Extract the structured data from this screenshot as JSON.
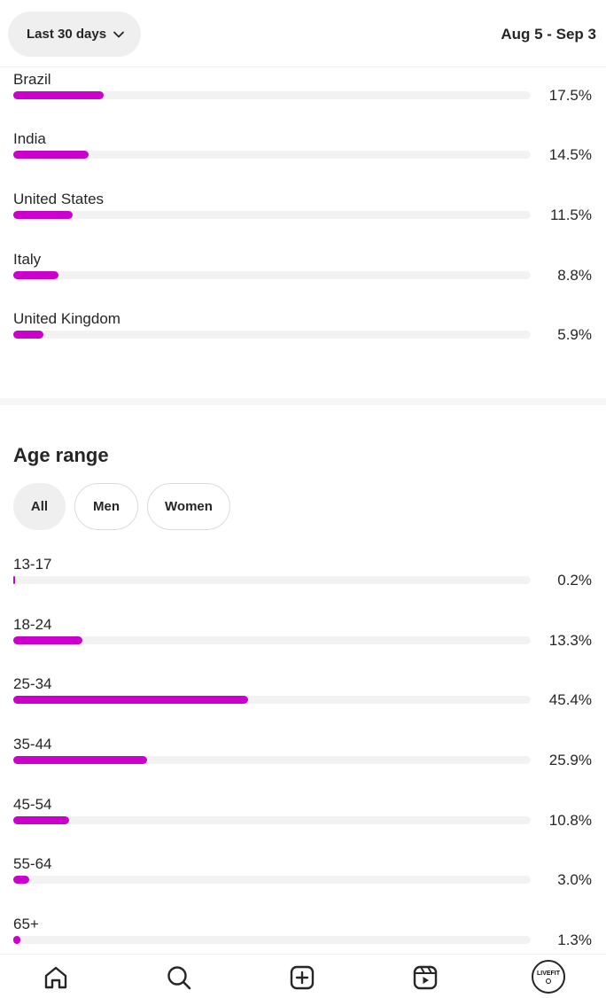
{
  "header": {
    "range_label": "Last 30 days",
    "date_range": "Aug 5 - Sep 3"
  },
  "countries": [
    {
      "label": "Brazil",
      "percent_text": "17.5%",
      "value": 17.5
    },
    {
      "label": "India",
      "percent_text": "14.5%",
      "value": 14.5
    },
    {
      "label": "United States",
      "percent_text": "11.5%",
      "value": 11.5
    },
    {
      "label": "Italy",
      "percent_text": "8.8%",
      "value": 8.8
    },
    {
      "label": "United Kingdom",
      "percent_text": "5.9%",
      "value": 5.9
    }
  ],
  "age_section": {
    "title": "Age range",
    "filters": [
      "All",
      "Men",
      "Women"
    ],
    "selected_filter": "All"
  },
  "ages": [
    {
      "label": "13-17",
      "percent_text": "0.2%",
      "value": 0.2
    },
    {
      "label": "18-24",
      "percent_text": "13.3%",
      "value": 13.3
    },
    {
      "label": "25-34",
      "percent_text": "45.4%",
      "value": 45.4
    },
    {
      "label": "35-44",
      "percent_text": "25.9%",
      "value": 25.9
    },
    {
      "label": "45-54",
      "percent_text": "10.8%",
      "value": 10.8
    },
    {
      "label": "55-64",
      "percent_text": "3.0%",
      "value": 3.0
    },
    {
      "label": "65+",
      "percent_text": "1.3%",
      "value": 1.3
    }
  ],
  "colors": {
    "bar_fill": "#cc00cc",
    "track": "#f2f2f2",
    "chip_active": "#efefef"
  },
  "bottom_nav": {
    "items": [
      "home-icon",
      "search-icon",
      "create-icon",
      "reels-icon",
      "profile-avatar"
    ],
    "avatar_text": "LIVEFIT"
  }
}
